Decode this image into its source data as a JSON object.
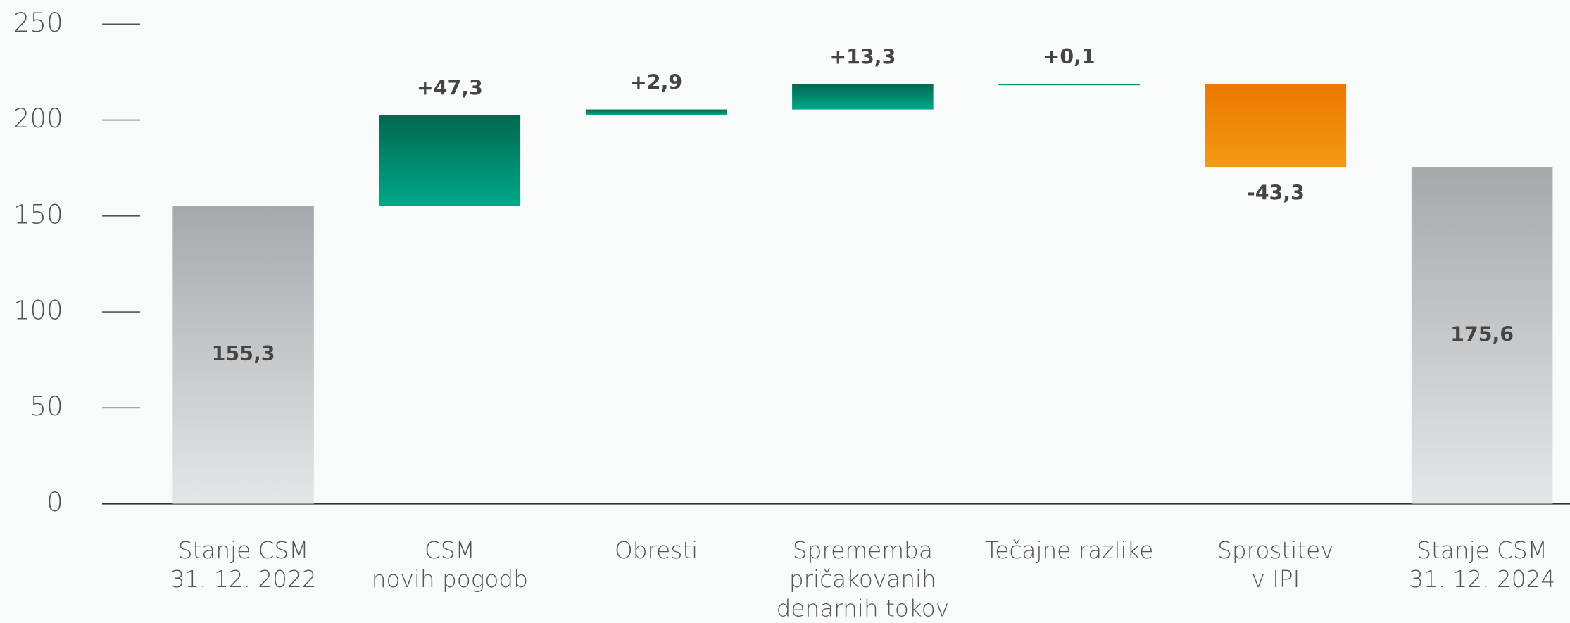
{
  "chart_data": {
    "type": "waterfall",
    "categories": [
      [
        "Stanje CSM",
        "31. 12. 2022"
      ],
      [
        "CSM",
        "novih pogodb"
      ],
      [
        "Obresti"
      ],
      [
        "Sprememba",
        "pričakovanih",
        "denarnih tokov"
      ],
      [
        "Tečajne razlike"
      ],
      [
        "Sprostitev",
        "v IPI"
      ],
      [
        "Stanje CSM",
        "31. 12. 2024"
      ]
    ],
    "measure": [
      "absolute",
      "relative",
      "relative",
      "relative",
      "relative",
      "relative",
      "total"
    ],
    "values": [
      155.3,
      47.3,
      2.9,
      13.3,
      0.1,
      -43.3,
      175.6
    ],
    "value_labels": [
      "155,3",
      "+47,3",
      "+2,9",
      "+13,3",
      "+0,1",
      "-43,3",
      "175,6"
    ],
    "colors": {
      "total": [
        "#a6a9ac",
        "#e5e6e7"
      ],
      "increase": [
        "#00684f",
        "#00a88a"
      ],
      "decrease": [
        "#ec7700",
        "#f39a12"
      ]
    },
    "ylim": [
      0,
      250
    ],
    "yticks": [
      0,
      50,
      100,
      150,
      200,
      250
    ]
  }
}
